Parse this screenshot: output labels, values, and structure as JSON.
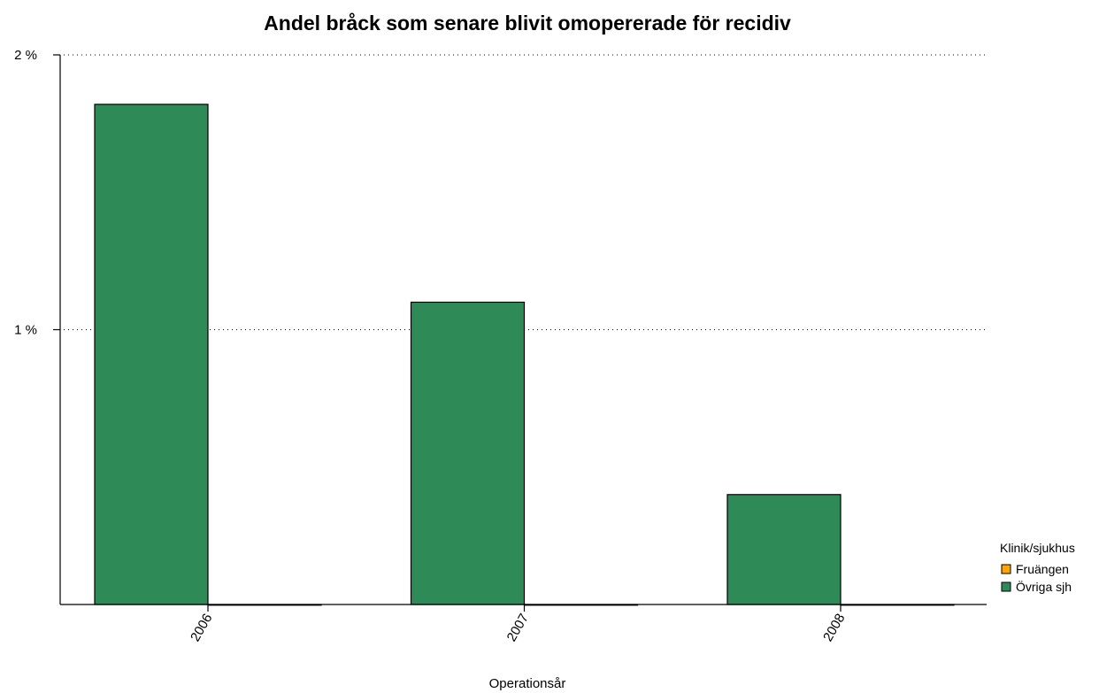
{
  "chart_data": {
    "type": "bar",
    "title": "Andel bråck som senare blivit omopererade för recidiv",
    "xlabel": "Operationsår",
    "ylabel": "",
    "categories": [
      "2006",
      "2007",
      "2008"
    ],
    "series": [
      {
        "name": "Övriga sjh",
        "color": "#2e8b57",
        "values": [
          1.82,
          1.1,
          0.4
        ]
      },
      {
        "name": "Fruängen",
        "color": "#ffa500",
        "values": [
          0,
          0,
          0
        ]
      }
    ],
    "ylim": [
      0,
      2
    ],
    "yticks": [
      {
        "value": 1,
        "label": "1 %"
      },
      {
        "value": 2,
        "label": "2 %"
      }
    ],
    "grid": "dotted horizontal at ticks",
    "legend": {
      "title": "Klinik/sjukhus",
      "position": "right",
      "entries": [
        {
          "label": "Fruängen",
          "color": "#ffa500"
        },
        {
          "label": "Övriga sjh",
          "color": "#2e8b57"
        }
      ]
    }
  }
}
